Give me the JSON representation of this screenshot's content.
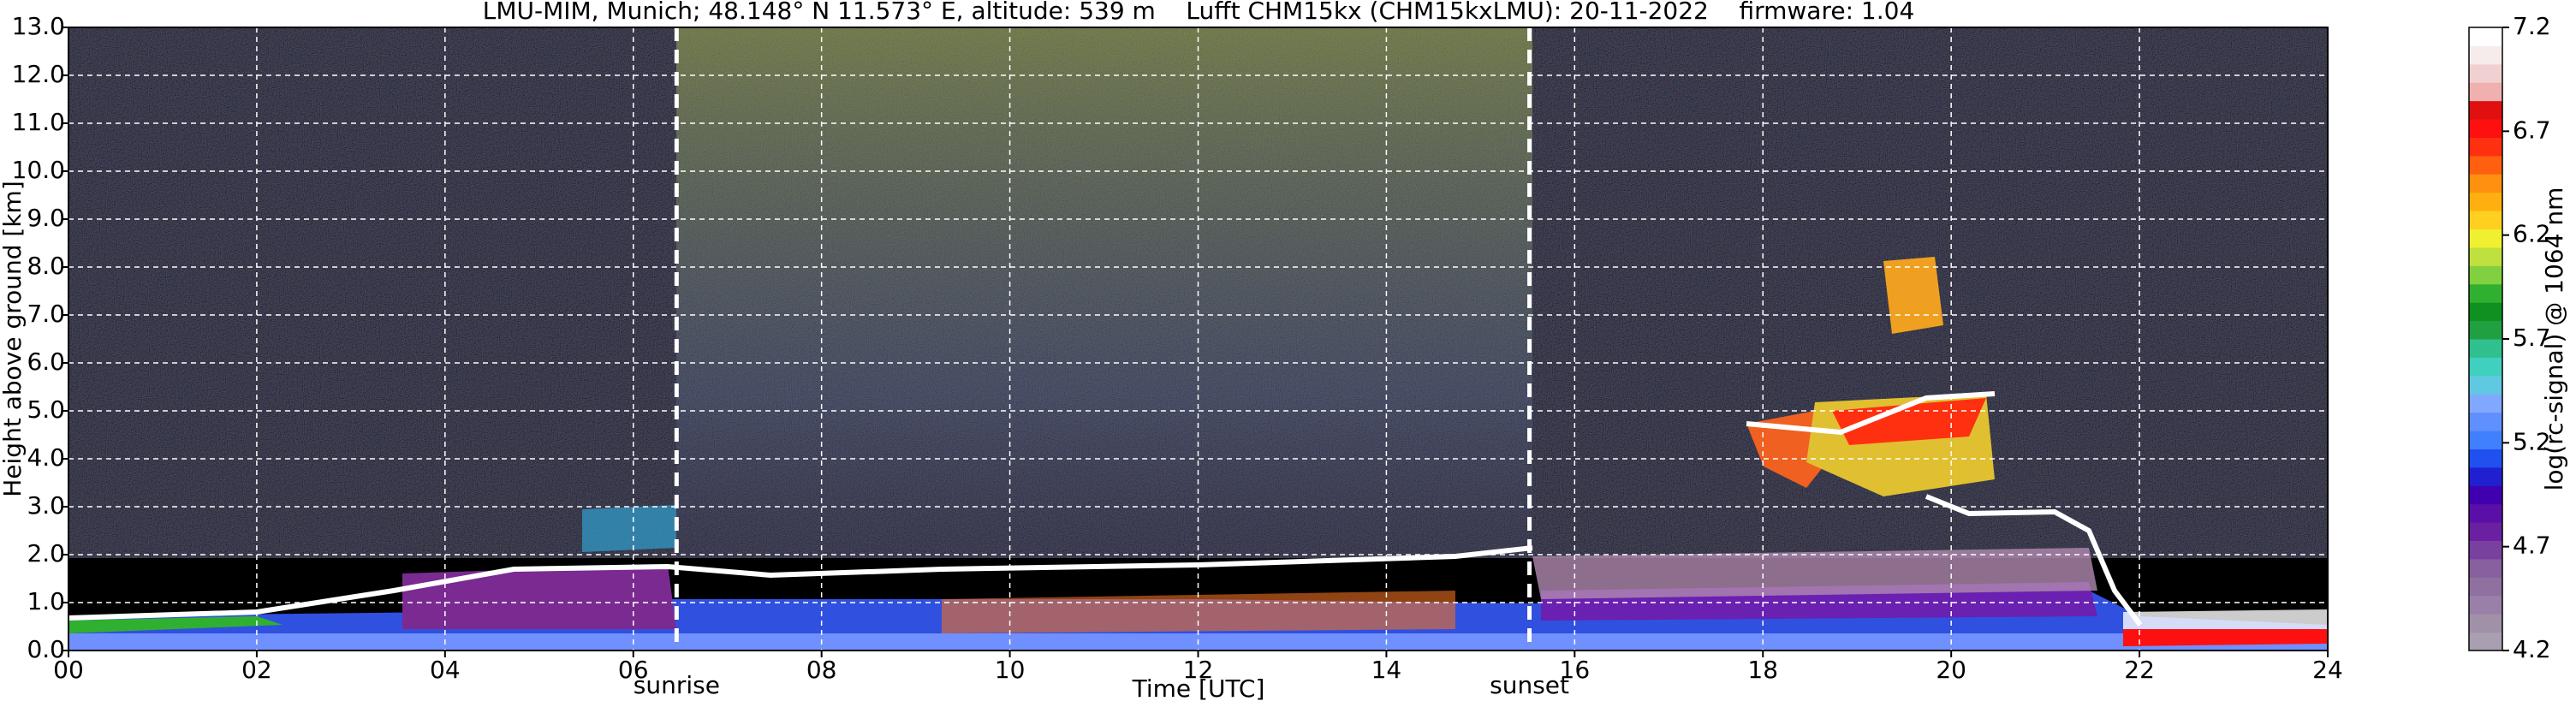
{
  "chart_data": {
    "type": "heatmap",
    "title": "LMU-MIM, Munich; 48.148° N 11.573° E, altitude: 539 m    Lufft CHM15kx (CHM15kxLMU): 20-11-2022    firmware: 1.04",
    "xlabel": "Time [UTC]",
    "ylabel": "Height above ground [km]",
    "xlim": [
      0,
      24
    ],
    "xticks": [
      {
        "value": 0,
        "label": "00"
      },
      {
        "value": 2,
        "label": "02"
      },
      {
        "value": 4,
        "label": "04"
      },
      {
        "value": 6,
        "label": "06"
      },
      {
        "value": 8,
        "label": "08"
      },
      {
        "value": 10,
        "label": "10"
      },
      {
        "value": 12,
        "label": "12"
      },
      {
        "value": 14,
        "label": "14"
      },
      {
        "value": 16,
        "label": "16"
      },
      {
        "value": 18,
        "label": "18"
      },
      {
        "value": 20,
        "label": "20"
      },
      {
        "value": 22,
        "label": "22"
      },
      {
        "value": 24,
        "label": "24"
      }
    ],
    "ylim": [
      0,
      13
    ],
    "yticks": [
      {
        "value": 0,
        "label": "0.0"
      },
      {
        "value": 1,
        "label": "1.0"
      },
      {
        "value": 2,
        "label": "2.0"
      },
      {
        "value": 3,
        "label": "3.0"
      },
      {
        "value": 4,
        "label": "4.0"
      },
      {
        "value": 5,
        "label": "5.0"
      },
      {
        "value": 6,
        "label": "6.0"
      },
      {
        "value": 7,
        "label": "7.0"
      },
      {
        "value": 8,
        "label": "8.0"
      },
      {
        "value": 9,
        "label": "9.0"
      },
      {
        "value": 10,
        "label": "10.0"
      },
      {
        "value": 11,
        "label": "11.0"
      },
      {
        "value": 12,
        "label": "12.0"
      },
      {
        "value": 13,
        "label": "13.0"
      }
    ],
    "grid": true,
    "grid_color": "#ffffff",
    "annotations": [
      {
        "text": "sunrise",
        "x": 6.46
      },
      {
        "text": "sunset",
        "x": 15.52
      }
    ],
    "colorbar": {
      "label": "log(rc-signal) @ 1064 nm",
      "lim": [
        4.2,
        7.2
      ],
      "ticks": [
        4.2,
        4.7,
        5.2,
        5.7,
        6.2,
        6.7,
        7.2
      ],
      "colors": [
        "#a8a0b0",
        "#a090a8",
        "#9a80a8",
        "#9070a0",
        "#8860a0",
        "#7a40a0",
        "#6a20a0",
        "#5a10a8",
        "#4000b0",
        "#2020d0",
        "#2050f0",
        "#4080ff",
        "#6090ff",
        "#80a8ff",
        "#60c8e0",
        "#40d0c0",
        "#30c090",
        "#20a040",
        "#109020",
        "#30b030",
        "#80d040",
        "#c0e040",
        "#f0f030",
        "#ffd020",
        "#ffb010",
        "#ff9010",
        "#ff6010",
        "#ff3010",
        "#ff1010",
        "#e01010",
        "#f0b0b0",
        "#f0d0d0",
        "#f6ecec",
        "#ffffff"
      ]
    }
  }
}
